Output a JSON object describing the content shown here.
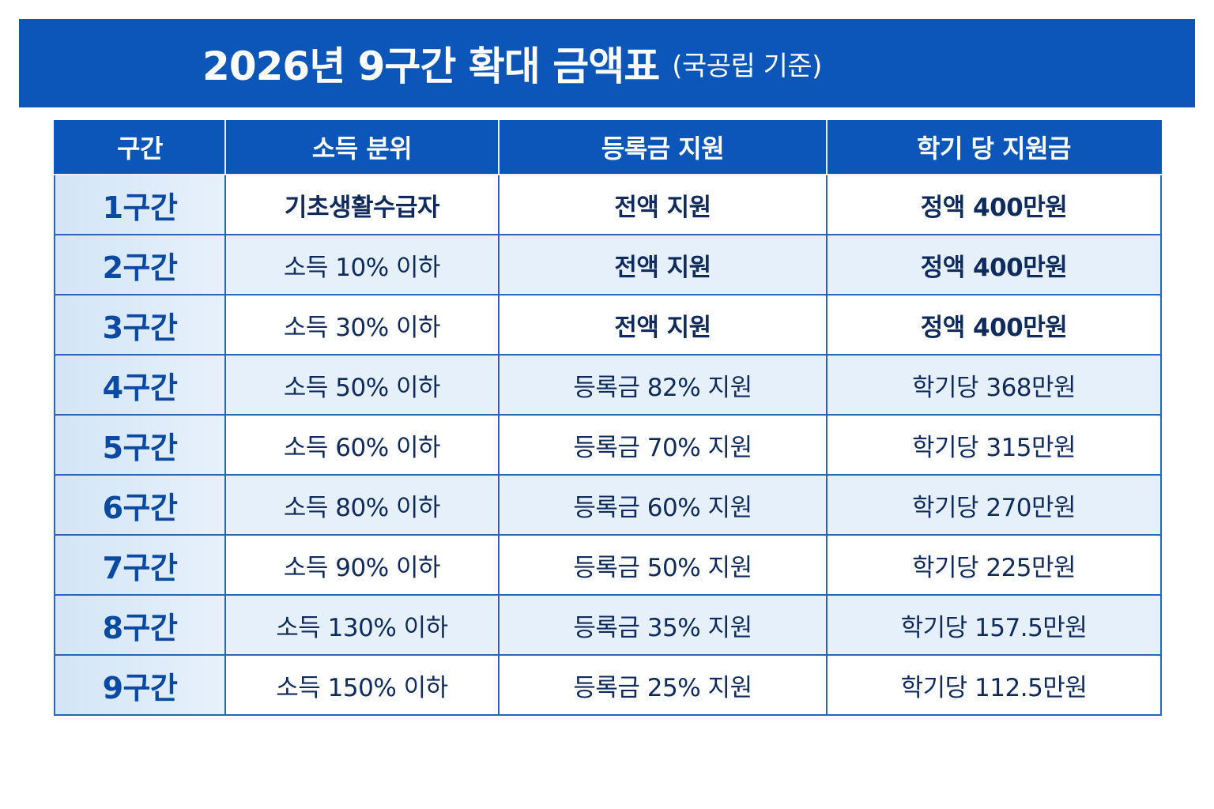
{
  "title": {
    "main": "2026년 9구간 확대 금액표",
    "sub": "(국공립 기준)"
  },
  "table": {
    "headers": [
      "구간",
      "소득 분위",
      "등록금 지원",
      "학기 당 지원금"
    ],
    "rows": [
      {
        "tier": "1구간",
        "income": "기초생활수급자",
        "tuition": "전액 지원",
        "amount": "정액 400만원"
      },
      {
        "tier": "2구간",
        "income": "소득 10% 이하",
        "tuition": "전액 지원",
        "amount": "정액 400만원"
      },
      {
        "tier": "3구간",
        "income": "소득 30% 이하",
        "tuition": "전액 지원",
        "amount": "정액 400만원"
      },
      {
        "tier": "4구간",
        "income": "소득 50% 이하",
        "tuition": "등록금 82% 지원",
        "amount": "학기당 368만원"
      },
      {
        "tier": "5구간",
        "income": "소득 60% 이하",
        "tuition": "등록금 70% 지원",
        "amount": "학기당 315만원"
      },
      {
        "tier": "6구간",
        "income": "소득 80% 이하",
        "tuition": "등록금 60% 지원",
        "amount": "학기당 270만원"
      },
      {
        "tier": "7구간",
        "income": "소득 90% 이하",
        "tuition": "등록금 50% 지원",
        "amount": "학기당 225만원"
      },
      {
        "tier": "8구간",
        "income": "소득 130% 이하",
        "tuition": "등록금 35% 지원",
        "amount": "학기당 157.5만원"
      },
      {
        "tier": "9구간",
        "income": "소득 150% 이하",
        "tuition": "등록금 25% 지원",
        "amount": "학기당 112.5만원"
      }
    ]
  },
  "colors": {
    "header_blue": "#0b56b8",
    "tier_text": "#0b4aa3",
    "cell_text": "#0f2a5c",
    "row_shade": "#e6f0fb"
  }
}
